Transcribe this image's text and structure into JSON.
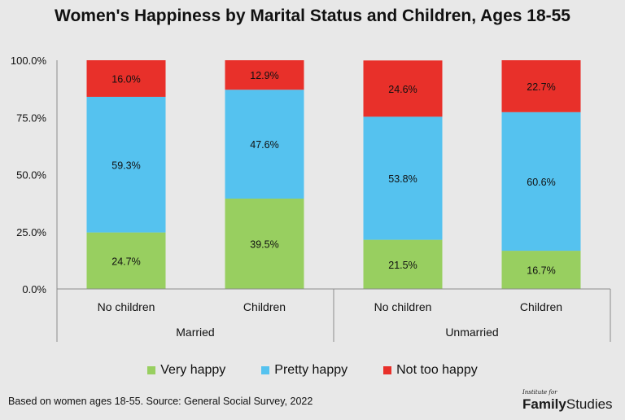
{
  "chart_data": {
    "type": "bar",
    "stacked": true,
    "title": "Women's Happiness by Marital Status and Children, Ages 18-55",
    "categories": [
      "No children",
      "Children",
      "No children",
      "Children"
    ],
    "groups": [
      {
        "label": "Married",
        "categories": [
          "No children",
          "Children"
        ]
      },
      {
        "label": "Unmarried",
        "categories": [
          "No children",
          "Children"
        ]
      }
    ],
    "series": [
      {
        "name": "Very happy",
        "color": "#98cf60",
        "values": [
          24.7,
          39.5,
          21.5,
          16.7
        ],
        "labels": [
          "24.7%",
          "39.5%",
          "21.5%",
          "16.7%"
        ]
      },
      {
        "name": "Pretty happy",
        "color": "#55c2ef",
        "values": [
          59.3,
          47.6,
          53.8,
          60.6
        ],
        "labels": [
          "59.3%",
          "47.6%",
          "53.8%",
          "60.6%"
        ]
      },
      {
        "name": "Not too happy",
        "color": "#e8302a",
        "values": [
          16.0,
          12.9,
          24.6,
          22.7
        ],
        "labels": [
          "16.0%",
          "12.9%",
          "24.6%",
          "22.7%"
        ]
      }
    ],
    "ylim": [
      0,
      100
    ],
    "y_ticks": [
      {
        "value": 0,
        "label": "0.0%"
      },
      {
        "value": 25,
        "label": "25.0%"
      },
      {
        "value": 50,
        "label": "50.0%"
      },
      {
        "value": 75,
        "label": "75.0%"
      },
      {
        "value": 100,
        "label": "100.0%"
      }
    ],
    "legend_position": "bottom",
    "grid": false
  },
  "footer": {
    "source": "Based on women ages 18-55. Source: General Social Survey, 2022",
    "brand_small": "Institute for",
    "brand_family": "Family",
    "brand_studies": "Studies"
  }
}
